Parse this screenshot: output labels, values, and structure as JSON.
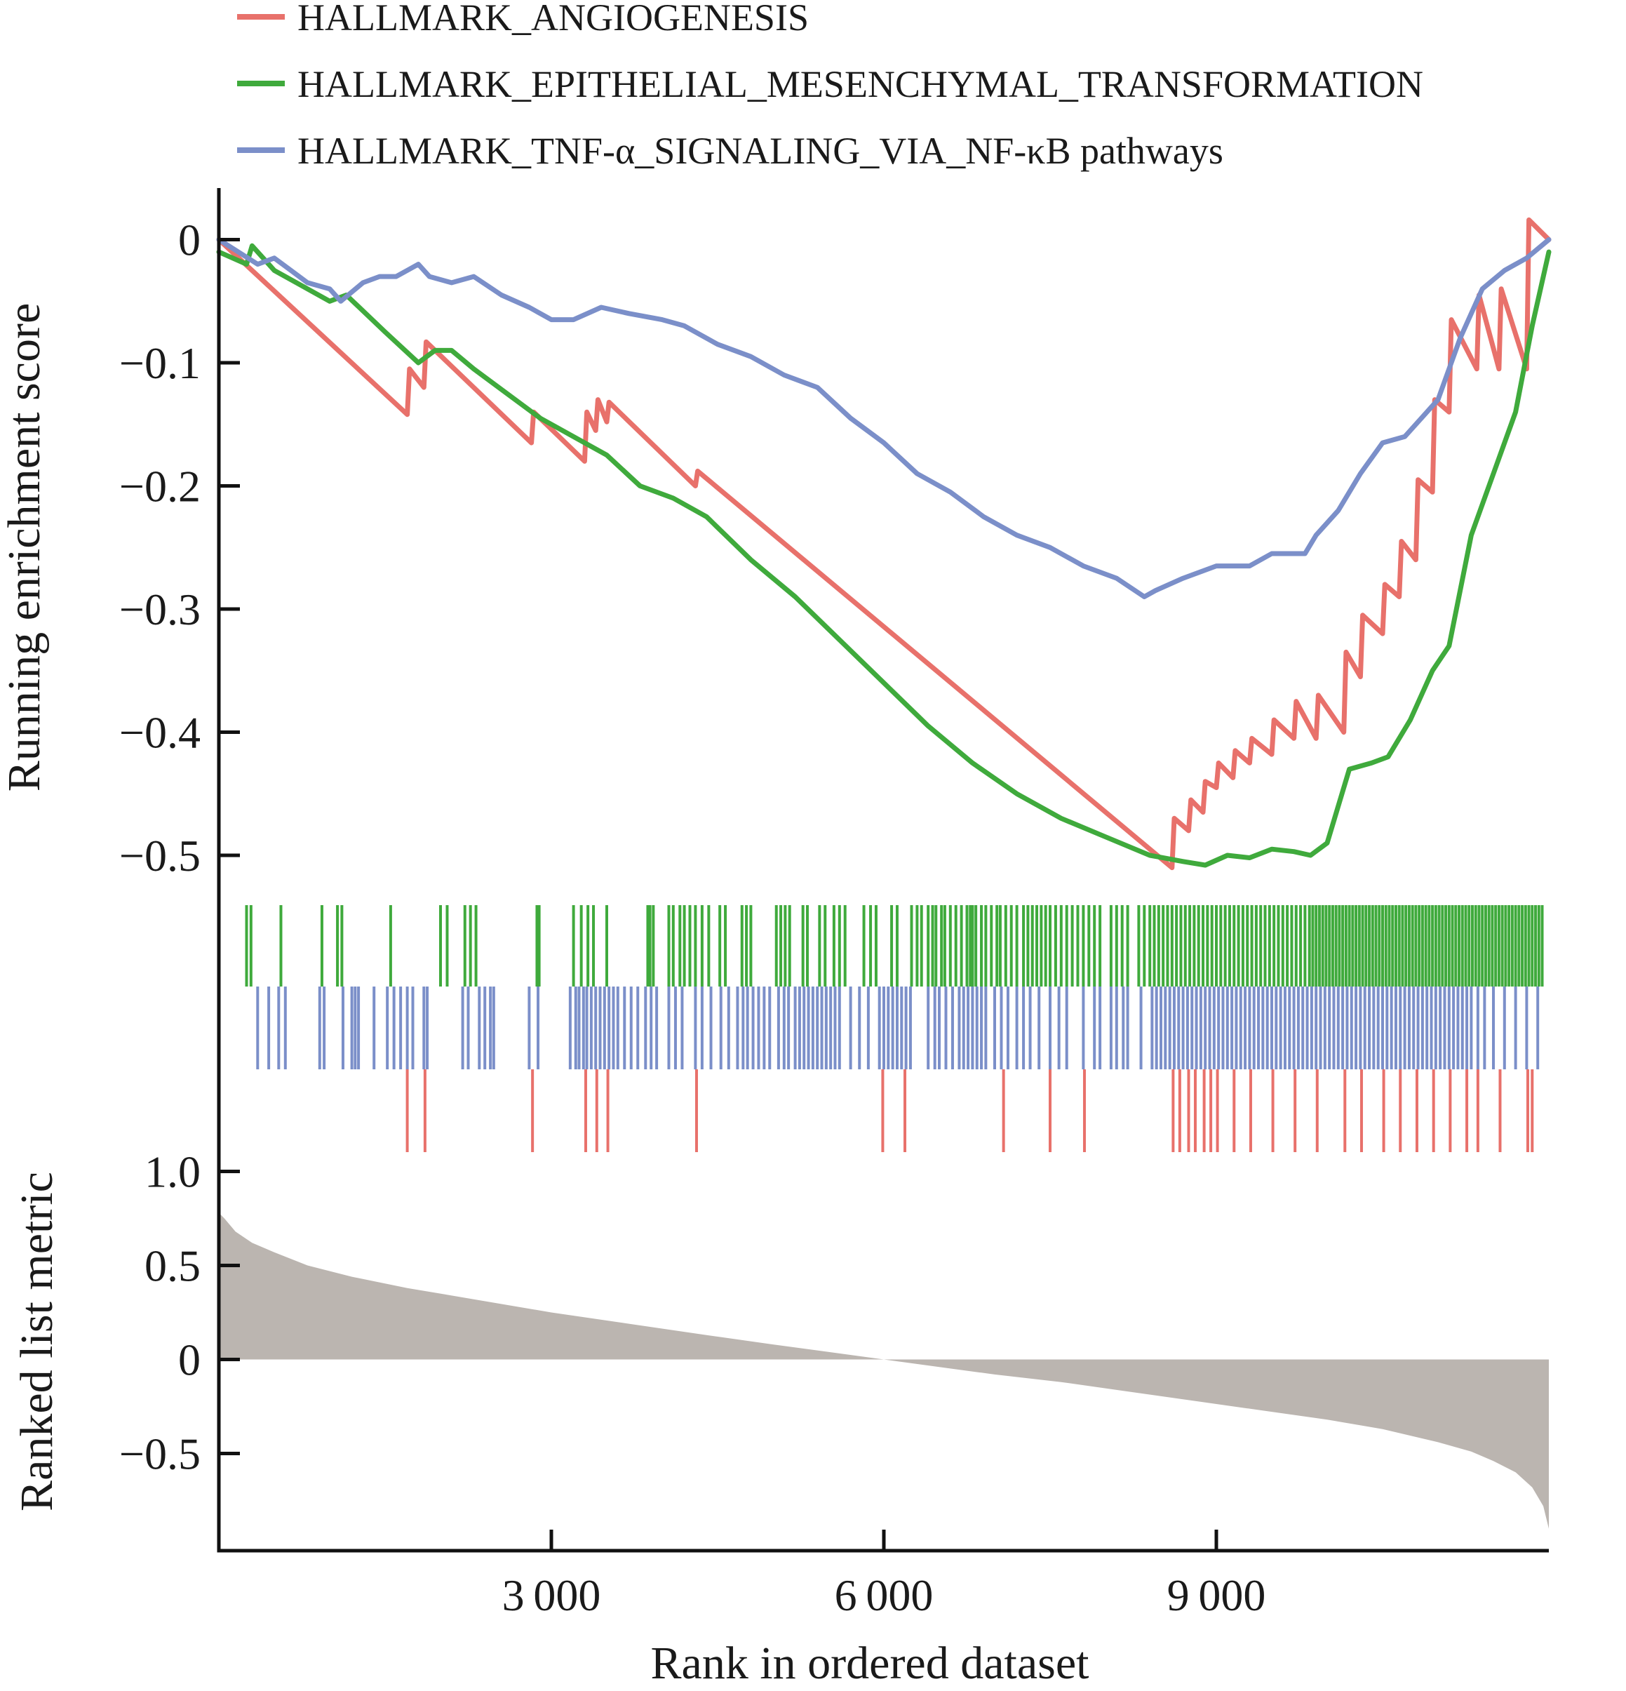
{
  "chart_data": [
    {
      "type": "line",
      "ylabel": "Running enrichment score",
      "xlim": [
        0,
        12000
      ],
      "ylim": [
        -0.52,
        0.04
      ],
      "yticks": [
        0,
        -0.1,
        -0.2,
        -0.3,
        -0.4,
        -0.5
      ],
      "ytick_labels": [
        "0",
        "−0.1",
        "−0.2",
        "−0.3",
        "−0.4",
        "−0.5"
      ],
      "legend": "top-left",
      "grid": false,
      "series": [
        {
          "name": "HALLMARK_ANGIOGENESIS",
          "color": "#E8716B",
          "x": [
            0,
            1700,
            1720,
            1850,
            1870,
            2820,
            2840,
            3300,
            3320,
            3400,
            3420,
            3500,
            3520,
            4300,
            4320,
            8600,
            8620,
            8750,
            8770,
            8880,
            8900,
            9000,
            9020,
            9150,
            9170,
            9300,
            9320,
            9500,
            9520,
            9700,
            9720,
            9900,
            9920,
            10150,
            10170,
            10300,
            10320,
            10500,
            10520,
            10650,
            10670,
            10800,
            10820,
            10950,
            10970,
            11100,
            11120,
            11350,
            11370,
            11550,
            11570,
            11800,
            11820,
            12000
          ],
          "y": [
            0,
            -0.142,
            -0.105,
            -0.12,
            -0.083,
            -0.165,
            -0.14,
            -0.18,
            -0.14,
            -0.155,
            -0.13,
            -0.148,
            -0.132,
            -0.2,
            -0.188,
            -0.51,
            -0.47,
            -0.48,
            -0.455,
            -0.465,
            -0.44,
            -0.445,
            -0.425,
            -0.437,
            -0.415,
            -0.425,
            -0.405,
            -0.418,
            -0.39,
            -0.405,
            -0.375,
            -0.405,
            -0.37,
            -0.4,
            -0.335,
            -0.355,
            -0.305,
            -0.32,
            -0.28,
            -0.29,
            -0.245,
            -0.26,
            -0.195,
            -0.205,
            -0.13,
            -0.14,
            -0.065,
            -0.105,
            -0.045,
            -0.105,
            -0.04,
            -0.105,
            0.016,
            0
          ]
        },
        {
          "name": "HALLMARK_EPITHELIAL_MESENCHYMAL_TRANSFORMATION",
          "color": "#3FAA3C",
          "x": [
            0,
            250,
            300,
            500,
            700,
            1000,
            1150,
            1500,
            1800,
            1950,
            2100,
            2300,
            2600,
            2900,
            3200,
            3500,
            3800,
            4100,
            4400,
            4800,
            5200,
            5600,
            6000,
            6400,
            6800,
            7200,
            7600,
            8000,
            8400,
            8700,
            8900,
            9100,
            9300,
            9500,
            9700,
            9850,
            10000,
            10200,
            10400,
            10550,
            10750,
            10950,
            11100,
            11300,
            11500,
            11700,
            11850,
            12000
          ],
          "y": [
            -0.01,
            -0.02,
            -0.005,
            -0.025,
            -0.035,
            -0.05,
            -0.045,
            -0.075,
            -0.1,
            -0.09,
            -0.09,
            -0.105,
            -0.125,
            -0.145,
            -0.16,
            -0.175,
            -0.2,
            -0.21,
            -0.225,
            -0.26,
            -0.29,
            -0.325,
            -0.36,
            -0.395,
            -0.425,
            -0.45,
            -0.47,
            -0.485,
            -0.5,
            -0.505,
            -0.508,
            -0.5,
            -0.502,
            -0.495,
            -0.497,
            -0.5,
            -0.49,
            -0.43,
            -0.425,
            -0.42,
            -0.39,
            -0.35,
            -0.33,
            -0.24,
            -0.19,
            -0.14,
            -0.07,
            -0.01
          ]
        },
        {
          "name": "HALLMARK_TNF-α_SIGNALING_VIA_NF-κB pathways",
          "color": "#7B8FC9",
          "x": [
            0,
            350,
            500,
            800,
            1000,
            1100,
            1300,
            1450,
            1600,
            1800,
            1900,
            2100,
            2300,
            2550,
            2800,
            3000,
            3200,
            3450,
            3700,
            4000,
            4200,
            4500,
            4800,
            5100,
            5400,
            5700,
            6000,
            6300,
            6600,
            6900,
            7200,
            7500,
            7800,
            8100,
            8350,
            8450,
            8700,
            9000,
            9300,
            9500,
            9800,
            9900,
            10100,
            10300,
            10500,
            10700,
            10900,
            11000,
            11200,
            11400,
            11600,
            11800,
            12000
          ],
          "y": [
            0,
            -0.02,
            -0.015,
            -0.035,
            -0.04,
            -0.05,
            -0.035,
            -0.03,
            -0.03,
            -0.02,
            -0.03,
            -0.035,
            -0.03,
            -0.045,
            -0.055,
            -0.065,
            -0.065,
            -0.055,
            -0.06,
            -0.065,
            -0.07,
            -0.085,
            -0.095,
            -0.11,
            -0.12,
            -0.145,
            -0.165,
            -0.19,
            -0.205,
            -0.225,
            -0.24,
            -0.25,
            -0.265,
            -0.275,
            -0.29,
            -0.285,
            -0.275,
            -0.265,
            -0.265,
            -0.255,
            -0.255,
            -0.24,
            -0.22,
            -0.19,
            -0.165,
            -0.16,
            -0.14,
            -0.13,
            -0.08,
            -0.04,
            -0.025,
            -0.015,
            0
          ]
        }
      ]
    },
    {
      "type": "barcode",
      "color_order": [
        "#3FAA3C",
        "#7B8FC9",
        "#E8716B"
      ],
      "rows": [
        {
          "series": "HALLMARK_EPITHELIAL_MESENCHYMAL_TRANSFORMATION",
          "color": "#3FAA3C",
          "positions": [
            250,
            290,
            560,
            930,
            1070,
            1110,
            1550,
            2000,
            2060,
            2220,
            2270,
            2320,
            2870,
            2890,
            3200,
            3270,
            3330,
            3380,
            3500,
            3870,
            3890,
            3920,
            4060,
            4100,
            4160,
            4200,
            4250,
            4300,
            4360,
            4420,
            4520,
            4570,
            4720,
            4760,
            4800,
            5030,
            5070,
            5110,
            5150,
            5270,
            5310,
            5420,
            5470,
            5550,
            5600,
            5650,
            5820,
            5880,
            5930,
            6070,
            6120,
            6250,
            6300,
            6340,
            6400,
            6440,
            6470,
            6520,
            6550,
            6600,
            6650,
            6700,
            6750,
            6780,
            6800,
            6830,
            6880,
            6920,
            6970,
            7020,
            7050,
            7100,
            7150,
            7200,
            7260,
            7300,
            7340,
            7380,
            7420,
            7460,
            7500,
            7550,
            7600,
            7650,
            7700,
            7750,
            7800,
            7850,
            7900,
            7950,
            8050,
            8100,
            8150,
            8200,
            8300,
            8350,
            8400,
            8440,
            8480,
            8520,
            8560,
            8600,
            8640,
            8680,
            8720,
            8760,
            8800,
            8840,
            8880,
            8920,
            8960,
            9000,
            9040,
            9080,
            9120,
            9160,
            9200,
            9240,
            9280,
            9320,
            9360,
            9400,
            9440,
            9480,
            9520,
            9560,
            9600,
            9640,
            9680,
            9720,
            9760,
            9800,
            9840,
            9870,
            9900,
            9930,
            9960,
            9990,
            10020,
            10050,
            10080,
            10110,
            10140,
            10170,
            10200,
            10230,
            10260,
            10290,
            10320,
            10350,
            10380,
            10410,
            10440,
            10470,
            10500,
            10530,
            10560,
            10590,
            10620,
            10650,
            10680,
            10710,
            10740,
            10770,
            10800,
            10830,
            10860,
            10890,
            10920,
            10950,
            10980,
            11010,
            11040,
            11070,
            11100,
            11130,
            11160,
            11190,
            11220,
            11250,
            11280,
            11310,
            11340,
            11370,
            11400,
            11430,
            11460,
            11490,
            11520,
            11550,
            11580,
            11610,
            11640,
            11670,
            11700,
            11730,
            11760,
            11790,
            11820,
            11850,
            11880,
            11910,
            11940
          ]
        },
        {
          "series": "HALLMARK_TNF-α_SIGNALING_VIA_NF-κB pathways",
          "color": "#7B8FC9",
          "positions": [
            350,
            450,
            540,
            600,
            910,
            950,
            1120,
            1200,
            1230,
            1260,
            1400,
            1520,
            1580,
            1640,
            1700,
            1750,
            1850,
            1880,
            2200,
            2250,
            2350,
            2400,
            2450,
            2480,
            2800,
            2880,
            3170,
            3220,
            3250,
            3290,
            3320,
            3360,
            3400,
            3440,
            3480,
            3520,
            3560,
            3600,
            3660,
            3720,
            3780,
            3850,
            3900,
            3950,
            4060,
            4120,
            4180,
            4300,
            4360,
            4440,
            4530,
            4600,
            4680,
            4730,
            4770,
            4820,
            4870,
            4920,
            4970,
            5050,
            5100,
            5140,
            5200,
            5240,
            5280,
            5320,
            5360,
            5400,
            5440,
            5480,
            5520,
            5560,
            5600,
            5700,
            5780,
            5860,
            5960,
            6000,
            6040,
            6080,
            6120,
            6160,
            6200,
            6240,
            6400,
            6460,
            6500,
            6560,
            6620,
            6680,
            6720,
            6760,
            6800,
            6840,
            6880,
            6920,
            7000,
            7060,
            7120,
            7200,
            7260,
            7320,
            7400,
            7500,
            7580,
            7650,
            7800,
            7900,
            7950,
            8050,
            8100,
            8160,
            8200,
            8320,
            8420,
            8460,
            8500,
            8540,
            8580,
            8620,
            8660,
            8700,
            8740,
            8780,
            8820,
            8860,
            8900,
            8940,
            8980,
            9020,
            9060,
            9100,
            9140,
            9180,
            9220,
            9260,
            9300,
            9340,
            9380,
            9420,
            9460,
            9500,
            9540,
            9580,
            9620,
            9660,
            9700,
            9740,
            9780,
            9820,
            9860,
            9900,
            9940,
            9980,
            10020,
            10060,
            10100,
            10140,
            10180,
            10220,
            10260,
            10300,
            10340,
            10380,
            10420,
            10460,
            10500,
            10540,
            10580,
            10620,
            10660,
            10700,
            10740,
            10780,
            10820,
            10860,
            10900,
            10940,
            10980,
            11020,
            11060,
            11100,
            11140,
            11180,
            11220,
            11260,
            11300,
            11360,
            11420,
            11500,
            11600,
            11700,
            11800,
            11900
          ]
        },
        {
          "series": "HALLMARK_ANGIOGENESIS",
          "color": "#E8716B",
          "positions": [
            1700,
            1860,
            2830,
            3310,
            3410,
            3510,
            4310,
            5990,
            6190,
            7080,
            7500,
            7810,
            8610,
            8670,
            8750,
            8810,
            8890,
            8950,
            9010,
            9160,
            9310,
            9510,
            9710,
            9910,
            10160,
            10310,
            10510,
            10660,
            10810,
            10960,
            11110,
            11260,
            11360,
            11560,
            11810,
            11850
          ]
        }
      ]
    },
    {
      "type": "area",
      "ylabel": "Ranked list metric",
      "xlabel": "Rank in ordered dataset",
      "xlim": [
        0,
        12000
      ],
      "ylim": [
        -0.88,
        1.02
      ],
      "xticks": [
        3000,
        6000,
        9000
      ],
      "xtick_labels": [
        "3 000",
        "6 000",
        "9 000"
      ],
      "yticks": [
        1.0,
        0.5,
        0,
        -0.5
      ],
      "ytick_labels": [
        "1.0",
        "0.5",
        "0",
        "−0.5"
      ],
      "fill_color": "#BBB5B0",
      "x": [
        0,
        50,
        150,
        300,
        500,
        800,
        1200,
        1700,
        2300,
        3000,
        3700,
        4400,
        5000,
        5500,
        6000,
        6500,
        7000,
        7600,
        8200,
        8800,
        9400,
        10000,
        10500,
        11000,
        11300,
        11500,
        11700,
        11850,
        11950,
        12000
      ],
      "y": [
        0.78,
        0.75,
        0.68,
        0.62,
        0.57,
        0.5,
        0.44,
        0.38,
        0.32,
        0.25,
        0.19,
        0.13,
        0.08,
        0.04,
        0.0,
        -0.04,
        -0.08,
        -0.12,
        -0.17,
        -0.22,
        -0.27,
        -0.32,
        -0.37,
        -0.44,
        -0.49,
        -0.54,
        -0.6,
        -0.68,
        -0.78,
        -0.9
      ]
    }
  ]
}
